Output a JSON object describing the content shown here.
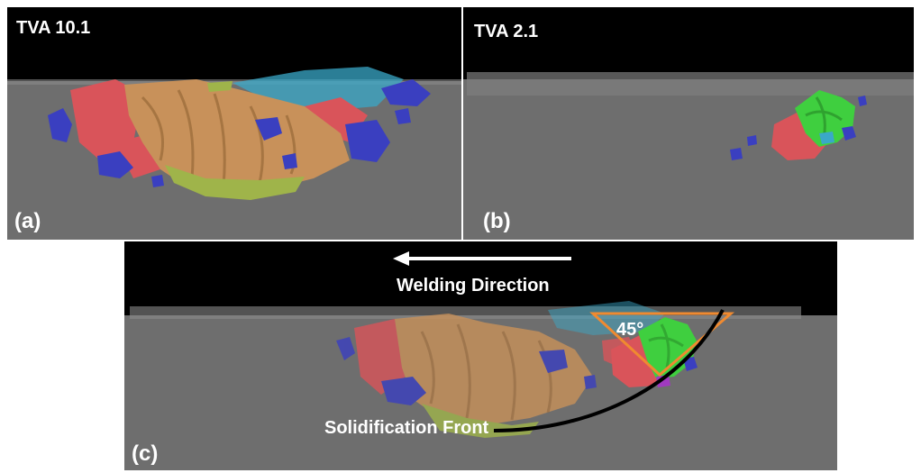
{
  "panel_a": {
    "title": "TVA 10.1",
    "tag": "(a)"
  },
  "panel_b": {
    "title": "TVA 2.1",
    "tag": "(b)"
  },
  "panel_c": {
    "tag": "(c)",
    "direction_label": "Welding Direction",
    "angle_label": "45°",
    "front_label": "Solidification Front"
  },
  "colors": {
    "background_top": "#000000",
    "material": "#6e6e6e",
    "grain_tan": "#c8915a",
    "grain_red": "#d9545a",
    "grain_blue": "#3a3fc0",
    "grain_green": "#3fcf3f",
    "grain_olive": "#9fb44a",
    "grain_cyan": "#3aa8c8",
    "angle_triangle": "#f08a30",
    "front_curve": "#000000",
    "arrow": "#ffffff"
  }
}
